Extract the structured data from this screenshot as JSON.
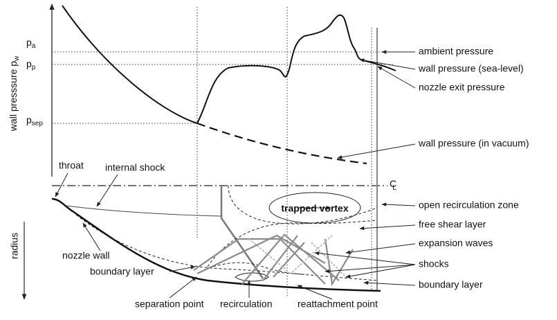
{
  "y_axis_label": {
    "text": "wall presssure p",
    "sub": "w"
  },
  "pressure_levels": [
    {
      "symbol": "p",
      "sub": "a"
    },
    {
      "symbol": "p",
      "sub": "p"
    },
    {
      "symbol": "p",
      "sub": "sep"
    }
  ],
  "radius_label": "radius",
  "centerline": {
    "symbol": "C",
    "sub": "L"
  },
  "annotations": [
    "ambient pressure",
    "wall pressure (sea-level)",
    "nozzle exit pressure",
    "wall pressure (in vacuum)",
    "throat",
    "internal shock",
    "trapped vortex",
    "open recirculation zone",
    "free shear layer",
    "expansion waves",
    "shocks",
    "boundary layer",
    "nozzle wall",
    "boundary layer",
    "separation point",
    "recirculation",
    "reattachment point"
  ]
}
